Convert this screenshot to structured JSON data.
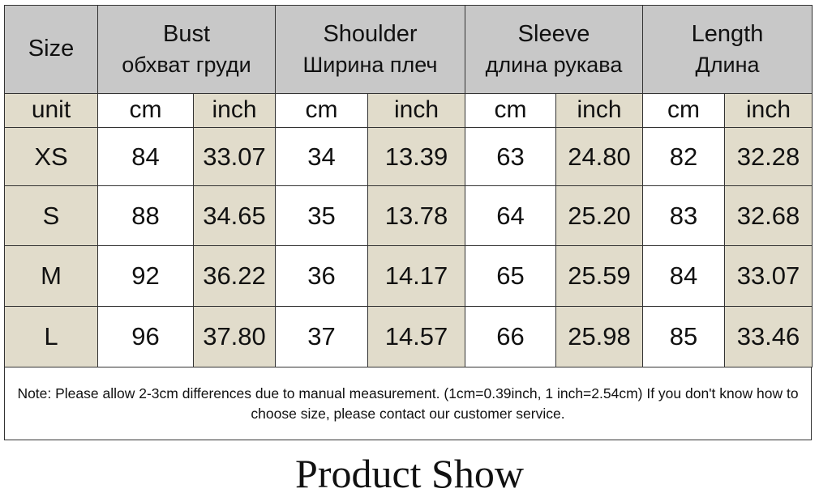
{
  "header": {
    "size": "Size",
    "groups": [
      {
        "title": "Bust",
        "subtitle": "обхват груди"
      },
      {
        "title": "Shoulder",
        "subtitle": "Ширина плеч"
      },
      {
        "title": "Sleeve",
        "subtitle": "длина рукава"
      },
      {
        "title": "Length",
        "subtitle": "Длина"
      }
    ]
  },
  "units": [
    "unit",
    "cm",
    "inch",
    "cm",
    "inch",
    "cm",
    "inch",
    "cm",
    "inch"
  ],
  "rows": [
    [
      "XS",
      "84",
      "33.07",
      "34",
      "13.39",
      "63",
      "24.80",
      "82",
      "32.28"
    ],
    [
      "S",
      "88",
      "34.65",
      "35",
      "13.78",
      "64",
      "25.20",
      "83",
      "32.68"
    ],
    [
      "M",
      "92",
      "36.22",
      "36",
      "14.17",
      "65",
      "25.59",
      "84",
      "33.07"
    ],
    [
      "L",
      "96",
      "37.80",
      "37",
      "14.57",
      "66",
      "25.98",
      "85",
      "33.46"
    ]
  ],
  "note": "Note: Please allow 2-3cm differences due to manual measurement. (1cm=0.39inch, 1 inch=2.54cm)  If you don't know how to choose size, please contact our customer service.",
  "footer_title": "Product Show"
}
